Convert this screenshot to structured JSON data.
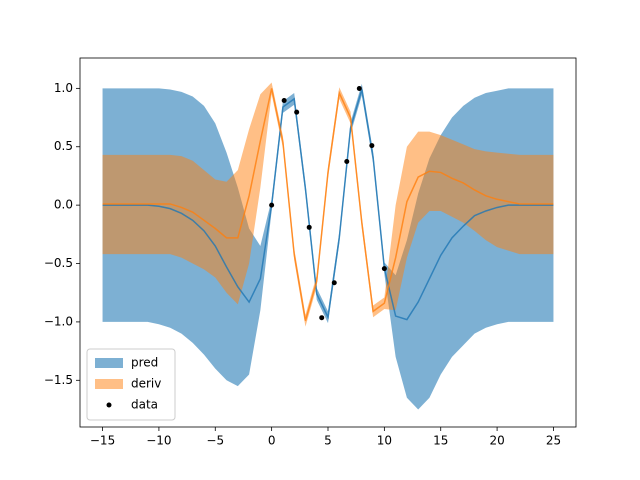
{
  "chart_data": {
    "type": "line",
    "x": [
      -15,
      -14,
      -13,
      -12,
      -11,
      -10,
      -9,
      -8,
      -7,
      -6,
      -5,
      -4,
      -3,
      -2,
      -1,
      0,
      1,
      2,
      3,
      4,
      5,
      6,
      7,
      8,
      9,
      10,
      11,
      12,
      13,
      14,
      15,
      16,
      17,
      18,
      19,
      20,
      21,
      22,
      23,
      24,
      25
    ],
    "series": [
      {
        "name": "pred",
        "color": "#1f77b4",
        "upper": [
          1.0,
          1.0,
          1.0,
          1.0,
          1.0,
          1.0,
          0.99,
          0.97,
          0.93,
          0.85,
          0.7,
          0.45,
          0.15,
          -0.2,
          -0.35,
          0.05,
          0.89,
          0.96,
          0.19,
          -0.71,
          -0.91,
          -0.23,
          0.71,
          1.04,
          0.46,
          -0.49,
          -0.6,
          -0.3,
          0.1,
          0.4,
          0.6,
          0.75,
          0.85,
          0.92,
          0.96,
          0.98,
          1.0,
          1.0,
          1.0,
          1.0,
          1.0
        ],
        "lower": [
          -1.0,
          -1.0,
          -1.0,
          -1.0,
          -1.0,
          -1.02,
          -1.05,
          -1.1,
          -1.18,
          -1.28,
          -1.4,
          -1.5,
          -1.55,
          -1.45,
          -0.9,
          -0.05,
          0.79,
          0.86,
          0.09,
          -0.81,
          -1.01,
          -0.33,
          0.61,
          0.94,
          0.36,
          -0.59,
          -1.3,
          -1.65,
          -1.75,
          -1.65,
          -1.45,
          -1.3,
          -1.2,
          -1.1,
          -1.05,
          -1.02,
          -1.0,
          -1.0,
          -1.0,
          -1.0,
          -1.0
        ],
        "values": [
          0,
          0,
          0,
          0,
          0,
          -0.01,
          -0.03,
          -0.07,
          -0.13,
          -0.22,
          -0.35,
          -0.53,
          -0.7,
          -0.83,
          -0.63,
          0,
          0.84,
          0.91,
          0.14,
          -0.76,
          -0.96,
          -0.28,
          0.66,
          0.99,
          0.41,
          -0.54,
          -0.95,
          -0.98,
          -0.83,
          -0.63,
          -0.43,
          -0.28,
          -0.18,
          -0.09,
          -0.05,
          -0.02,
          0,
          0,
          0,
          0,
          0
        ]
      },
      {
        "name": "deriv",
        "color": "#ff7f0e",
        "upper": [
          0.43,
          0.43,
          0.43,
          0.43,
          0.43,
          0.43,
          0.43,
          0.42,
          0.38,
          0.3,
          0.22,
          0.2,
          0.3,
          0.65,
          0.95,
          1.05,
          0.59,
          -0.37,
          -0.94,
          -0.6,
          0.33,
          1.01,
          0.8,
          -0.1,
          -0.86,
          -0.79,
          0.0,
          0.5,
          0.63,
          0.63,
          0.6,
          0.56,
          0.52,
          0.48,
          0.46,
          0.45,
          0.44,
          0.43,
          0.43,
          0.43,
          0.43
        ],
        "lower": [
          -0.42,
          -0.42,
          -0.42,
          -0.42,
          -0.42,
          -0.42,
          -0.42,
          -0.45,
          -0.5,
          -0.55,
          -0.62,
          -0.75,
          -0.85,
          -0.5,
          0.15,
          0.95,
          0.49,
          -0.47,
          -1.04,
          -0.7,
          0.23,
          0.91,
          0.7,
          -0.2,
          -0.96,
          -0.89,
          -0.9,
          -0.45,
          -0.15,
          -0.05,
          -0.05,
          -0.1,
          -0.15,
          -0.22,
          -0.3,
          -0.36,
          -0.39,
          -0.42,
          -0.42,
          -0.42,
          -0.42
        ],
        "values": [
          0.01,
          0.01,
          0.01,
          0.01,
          0.01,
          0.01,
          0.01,
          -0.02,
          -0.06,
          -0.13,
          -0.2,
          -0.28,
          -0.28,
          0.08,
          0.55,
          1.0,
          0.54,
          -0.42,
          -0.99,
          -0.65,
          0.28,
          0.96,
          0.75,
          -0.15,
          -0.91,
          -0.84,
          -0.45,
          0.03,
          0.24,
          0.29,
          0.28,
          0.23,
          0.19,
          0.13,
          0.08,
          0.05,
          0.03,
          0.01,
          0.01,
          0.01,
          0.01
        ]
      }
    ],
    "points": {
      "name": "data",
      "color": "#000000",
      "x": [
        0,
        1.111,
        2.222,
        3.333,
        4.444,
        5.556,
        6.667,
        7.778,
        8.889,
        10
      ],
      "values": [
        0,
        0.896,
        0.796,
        -0.19,
        -0.964,
        -0.665,
        0.374,
        0.999,
        0.51,
        -0.544
      ]
    },
    "xlim": [
      -17,
      27
    ],
    "ylim": [
      -1.9,
      1.26
    ],
    "xticks": [
      {
        "value": -15,
        "label": "−15"
      },
      {
        "value": -10,
        "label": "−10"
      },
      {
        "value": -5,
        "label": "−5"
      },
      0,
      5,
      10,
      15,
      20,
      25
    ],
    "yticks": [
      {
        "value": -1.5,
        "label": "−1.5"
      },
      {
        "value": -1.0,
        "label": "−1.0"
      },
      {
        "value": -0.5,
        "label": "−0.5"
      },
      {
        "value": 0,
        "label": "0.0"
      },
      {
        "value": 0.5,
        "label": "0.5"
      },
      {
        "value": 1.0,
        "label": "1.0"
      }
    ],
    "legend": "lower left"
  }
}
